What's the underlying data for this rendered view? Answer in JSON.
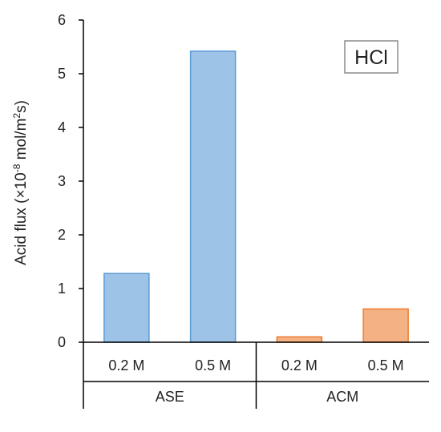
{
  "chart_data": {
    "type": "bar",
    "ylabel": "Acid flux  (×10",
    "ylabel_exponent": "-8",
    "ylabel_unit": " mol/m",
    "ylabel_unit_exponent": "2",
    "ylabel_tail": "s)",
    "ylim": [
      0,
      6
    ],
    "yticks": [
      "0",
      "1",
      "2",
      "3",
      "4",
      "5",
      "6"
    ],
    "legend_box_label": "HCl",
    "groups": [
      {
        "label": "ASE",
        "color": "#9dc3e6",
        "stroke": "#5b9bd5"
      },
      {
        "label": "ACM",
        "color": "#f4b183",
        "stroke": "#ed7d31"
      }
    ],
    "categories": [
      "0.2 M",
      "0.5 M",
      "0.2 M",
      "0.5 M"
    ],
    "category_group": [
      0,
      0,
      1,
      1
    ],
    "values": [
      1.28,
      5.42,
      0.1,
      0.62
    ],
    "grid": false
  }
}
